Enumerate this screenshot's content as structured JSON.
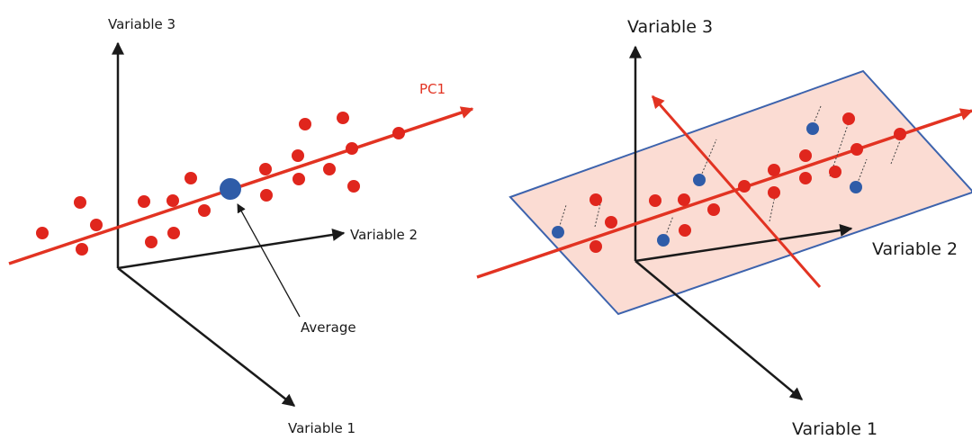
{
  "colors": {
    "axis": "#1a1a1a",
    "pc_line": "#e23322",
    "point_red": "#e0261d",
    "point_blue": "#2f5ca8",
    "plane_fill": "#fbdcd3",
    "plane_stroke": "#3d63ad",
    "projection_line": "#444444"
  },
  "left_panel": {
    "axis_labels": {
      "variable3": "Variable 3",
      "variable2": "Variable 2",
      "variable1": "Variable 1"
    },
    "pc1_label": "PC1",
    "average_label": "Average"
  },
  "right_panel": {
    "axis_labels": {
      "variable3": "Variable 3",
      "variable2": "Variable 2",
      "variable1": "Variable 1"
    }
  }
}
